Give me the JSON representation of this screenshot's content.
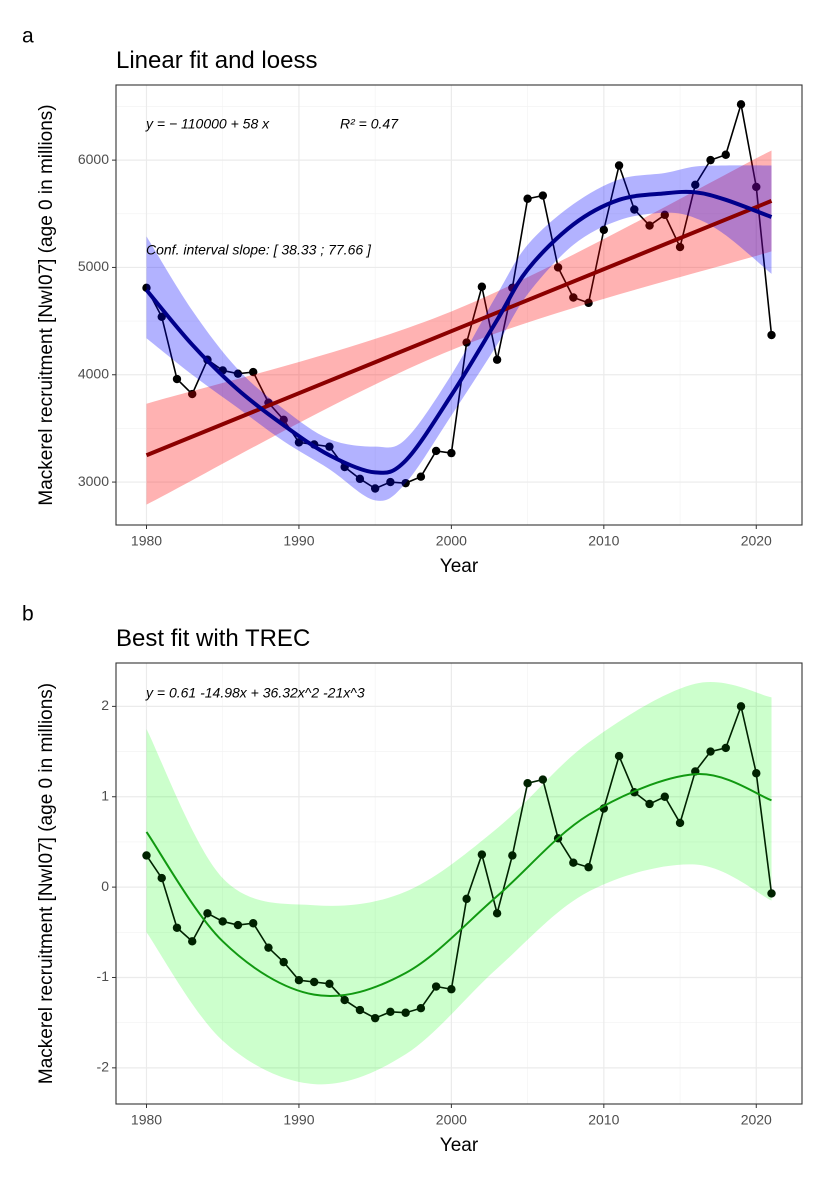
{
  "chart_data": [
    {
      "type": "line",
      "tag": "a",
      "title": "Linear fit and loess",
      "x_label": "Year",
      "y_label": "Mackerel recruitment [NwI07] (age 0 in millions)",
      "xlim": [
        1978,
        2023
      ],
      "ylim": [
        2600,
        6700
      ],
      "xticks": [
        1980,
        1990,
        2000,
        2010,
        2020
      ],
      "yticks": [
        3000,
        4000,
        5000,
        6000
      ],
      "grid": true,
      "annotations": [
        "y = − 110000 + 58 x",
        "R² = 0.47",
        "Conf. interval slope:  [ 38.33 ; 77.66 ]"
      ],
      "annotation_color": "#8b0000",
      "series": [
        {
          "kind": "points-line",
          "color": "#000000",
          "x": [
            1980,
            1981,
            1982,
            1983,
            1984,
            1985,
            1986,
            1987,
            1988,
            1989,
            1990,
            1991,
            1992,
            1993,
            1994,
            1995,
            1996,
            1997,
            1998,
            1999,
            2000,
            2001,
            2002,
            2003,
            2004,
            2005,
            2006,
            2007,
            2008,
            2009,
            2010,
            2011,
            2012,
            2013,
            2014,
            2015,
            2016,
            2017,
            2018,
            2019,
            2020,
            2021
          ],
          "values": [
            4810,
            4540,
            3960,
            3820,
            4140,
            4040,
            4010,
            4025,
            3740,
            3580,
            3370,
            3350,
            3330,
            3140,
            3030,
            2940,
            3000,
            2990,
            3050,
            3290,
            3270,
            4300,
            4820,
            4140,
            4810,
            5640,
            5670,
            5000,
            4720,
            4670,
            5350,
            5950,
            5540,
            5390,
            5490,
            5190,
            5770,
            6000,
            6050,
            6520,
            5750,
            4370
          ]
        },
        {
          "kind": "band",
          "color": "#ff0000",
          "alpha": 0.3,
          "x": [
            1980,
            2000,
            2021
          ],
          "lower": [
            2790,
            4230,
            5150
          ],
          "upper": [
            3730,
            4590,
            6090
          ]
        },
        {
          "kind": "band",
          "color": "#0000ff",
          "alpha": 0.3,
          "x": [
            1980,
            1983,
            1986,
            1989,
            1992,
            1995,
            1997,
            2000,
            2003,
            2005,
            2008,
            2011,
            2014,
            2016,
            2018,
            2021
          ],
          "lower": [
            4340,
            4000,
            3690,
            3380,
            3120,
            2830,
            2990,
            3620,
            4280,
            4750,
            5210,
            5440,
            5510,
            5460,
            5300,
            4940
          ],
          "upper": [
            5290,
            4600,
            4050,
            3680,
            3400,
            3330,
            3400,
            4000,
            4750,
            5210,
            5590,
            5820,
            5880,
            5940,
            5950,
            5950
          ]
        },
        {
          "kind": "fit",
          "color": "#8b0000",
          "width": 4,
          "x": [
            1980,
            2021
          ],
          "values": [
            3250,
            5620
          ]
        },
        {
          "kind": "fit",
          "color": "#00008b",
          "width": 4,
          "x": [
            1980,
            1983,
            1986,
            1989,
            1992,
            1995,
            1997,
            2000,
            2003,
            2005,
            2008,
            2011,
            2014,
            2016,
            2018,
            2021
          ],
          "values": [
            4790,
            4280,
            3860,
            3530,
            3250,
            3090,
            3200,
            3810,
            4510,
            4980,
            5400,
            5630,
            5690,
            5700,
            5630,
            5470
          ]
        }
      ]
    },
    {
      "type": "line",
      "tag": "b",
      "title": "Best fit with TREC",
      "x_label": "Year",
      "y_label": "Mackerel recruitment [NwI07] (age 0 in millions)",
      "xlim": [
        1978,
        2023
      ],
      "ylim": [
        -2.4,
        2.48
      ],
      "xticks": [
        1980,
        1990,
        2000,
        2010,
        2020
      ],
      "yticks": [
        -2,
        -1,
        0,
        1,
        2
      ],
      "grid": true,
      "annotations": [
        "y =  0.61   -14.98x  + 36.32x^2   -21x^3"
      ],
      "annotation_color": "#006400",
      "series": [
        {
          "kind": "band",
          "color": "#00ff00",
          "alpha": 0.2,
          "x": [
            1980,
            1985,
            1991,
            1997,
            2003,
            2009,
            2016,
            2021
          ],
          "lower": [
            -0.5,
            -1.7,
            -2.18,
            -1.85,
            -0.9,
            -0.05,
            0.25,
            -0.15
          ],
          "upper": [
            1.75,
            0.1,
            -0.2,
            -0.05,
            0.65,
            1.6,
            2.25,
            2.1
          ]
        },
        {
          "kind": "points-line",
          "color": "#002200",
          "x": [
            1980,
            1981,
            1982,
            1983,
            1984,
            1985,
            1986,
            1987,
            1988,
            1989,
            1990,
            1991,
            1992,
            1993,
            1994,
            1995,
            1996,
            1997,
            1998,
            1999,
            2000,
            2001,
            2002,
            2003,
            2004,
            2005,
            2006,
            2007,
            2008,
            2009,
            2010,
            2011,
            2012,
            2013,
            2014,
            2015,
            2016,
            2017,
            2018,
            2019,
            2020,
            2021
          ],
          "values": [
            0.35,
            0.1,
            -0.45,
            -0.6,
            -0.29,
            -0.38,
            -0.42,
            -0.4,
            -0.67,
            -0.83,
            -1.03,
            -1.05,
            -1.07,
            -1.25,
            -1.36,
            -1.45,
            -1.38,
            -1.39,
            -1.34,
            -1.1,
            -1.13,
            -0.13,
            0.36,
            -0.29,
            0.35,
            1.15,
            1.19,
            0.54,
            0.27,
            0.22,
            0.87,
            1.45,
            1.05,
            0.92,
            1.0,
            0.71,
            1.28,
            1.5,
            1.54,
            2.0,
            1.26,
            -0.07
          ]
        },
        {
          "kind": "fit",
          "color": "#119911",
          "width": 2,
          "x": [
            1980,
            1985,
            1991,
            1997,
            2003,
            2009,
            2016,
            2021
          ],
          "values": [
            0.61,
            -0.6,
            -1.19,
            -0.95,
            -0.1,
            0.8,
            1.25,
            0.96
          ]
        }
      ]
    }
  ]
}
